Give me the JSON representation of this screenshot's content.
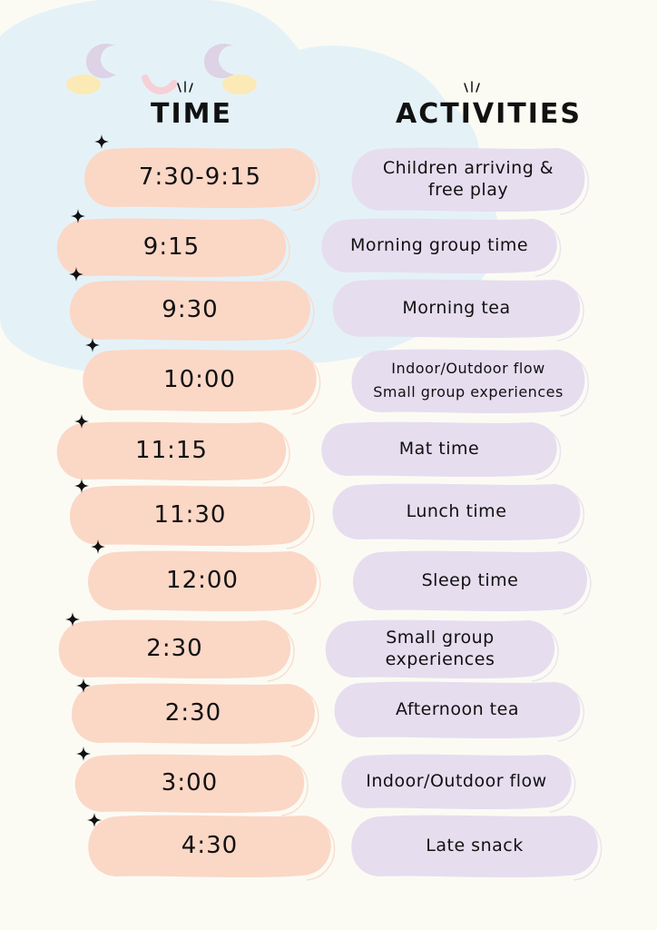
{
  "headings": {
    "time": "TIME",
    "activities": "ACTIVITIES"
  },
  "schedule": [
    {
      "time": "7:30-9:15",
      "activity": "Children arriving & free play"
    },
    {
      "time": "9:15",
      "activity": "Morning group time"
    },
    {
      "time": "9:30",
      "activity": "Morning tea"
    },
    {
      "time": "10:00",
      "activity": "Indoor/Outdoor flow Small group experiences"
    },
    {
      "time": "11:15",
      "activity": "Mat time"
    },
    {
      "time": "11:30",
      "activity": "Lunch time"
    },
    {
      "time": "12:00",
      "activity": "Sleep time"
    },
    {
      "time": "2:30",
      "activity": "Small group experiences"
    },
    {
      "time": "2:30",
      "activity": "Afternoon tea"
    },
    {
      "time": "3:00",
      "activity": "Indoor/Outdoor flow"
    },
    {
      "time": "4:30",
      "activity": "Late snack"
    }
  ],
  "colors": {
    "background": "#fbfbf4",
    "cloud": "#e4f2f8",
    "time_blob": "#fbd7c6",
    "activity_blob": "#e6ddef",
    "moon": "#ddd2e6",
    "cheek": "#fbeab5",
    "mouth": "#f7cfd6"
  },
  "icons": [
    "moon-icon",
    "cheek-icon",
    "sparkle-icon",
    "sparkle-lines-icon"
  ]
}
